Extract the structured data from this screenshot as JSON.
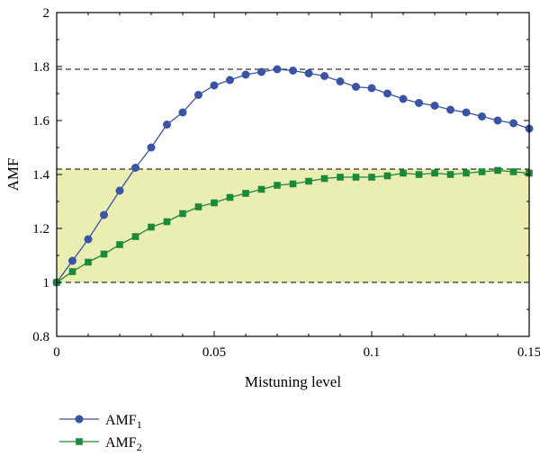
{
  "chart_data": {
    "type": "line",
    "xlabel": "Mistuning level",
    "ylabel": "AMF",
    "xlim": [
      0,
      0.15
    ],
    "ylim": [
      0.8,
      2
    ],
    "xticks": [
      0,
      0.05,
      0.1,
      0.15
    ],
    "xtick_labels": [
      "0",
      "0.05",
      "0.1",
      "0.15"
    ],
    "yticks": [
      0.8,
      1,
      1.2,
      1.4,
      1.6,
      1.8,
      2
    ],
    "ytick_labels": [
      "0.8",
      "1",
      "1.2",
      "1.4",
      "1.6",
      "1.8",
      "2"
    ],
    "grid": false,
    "band": {
      "y0": 1.0,
      "y1": 1.42,
      "color": "#eaeeb2"
    },
    "hlines": [
      1.0,
      1.42,
      1.79
    ],
    "x": [
      0,
      0.005,
      0.01,
      0.015,
      0.02,
      0.025,
      0.03,
      0.035,
      0.04,
      0.045,
      0.05,
      0.055,
      0.06,
      0.065,
      0.07,
      0.075,
      0.08,
      0.085,
      0.09,
      0.095,
      0.1,
      0.105,
      0.11,
      0.115,
      0.12,
      0.125,
      0.13,
      0.135,
      0.14,
      0.145,
      0.15
    ],
    "series": [
      {
        "name": "AMF",
        "subscript": "1",
        "marker": "circle",
        "color": "#3a53a4",
        "values": [
          1.0,
          1.08,
          1.16,
          1.25,
          1.34,
          1.425,
          1.5,
          1.585,
          1.63,
          1.695,
          1.73,
          1.75,
          1.77,
          1.78,
          1.79,
          1.785,
          1.775,
          1.765,
          1.745,
          1.725,
          1.72,
          1.7,
          1.68,
          1.665,
          1.655,
          1.64,
          1.63,
          1.615,
          1.6,
          1.59,
          1.57
        ]
      },
      {
        "name": "AMF",
        "subscript": "2",
        "marker": "square",
        "color": "#1a8a3a",
        "values": [
          1.0,
          1.04,
          1.075,
          1.105,
          1.14,
          1.17,
          1.205,
          1.225,
          1.255,
          1.28,
          1.295,
          1.315,
          1.33,
          1.345,
          1.36,
          1.365,
          1.375,
          1.385,
          1.39,
          1.39,
          1.39,
          1.395,
          1.405,
          1.4,
          1.405,
          1.4,
          1.405,
          1.41,
          1.415,
          1.41,
          1.405
        ]
      }
    ],
    "legend": {
      "placement": "bottom-left"
    }
  }
}
